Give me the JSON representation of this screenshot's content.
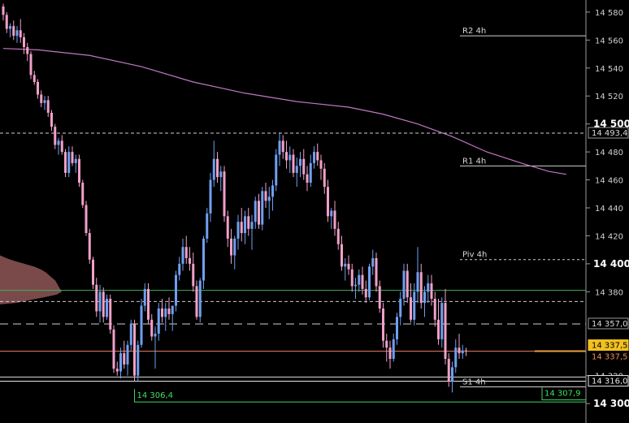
{
  "chart_data": {
    "type": "candlestick",
    "ylim": [
      14296,
      14584
    ],
    "y_ticks": [
      {
        "value": 14580,
        "label": "14 580",
        "major": false
      },
      {
        "value": 14560,
        "label": "14 560",
        "major": false
      },
      {
        "value": 14540,
        "label": "14 540",
        "major": false
      },
      {
        "value": 14520,
        "label": "14 520",
        "major": false
      },
      {
        "value": 14500,
        "label": "14 500",
        "major": true
      },
      {
        "value": 14480,
        "label": "14 480",
        "major": false
      },
      {
        "value": 14460,
        "label": "14 460",
        "major": false
      },
      {
        "value": 14440,
        "label": "14 440",
        "major": false
      },
      {
        "value": 14420,
        "label": "14 420",
        "major": false
      },
      {
        "value": 14400,
        "label": "14 400",
        "major": true
      },
      {
        "value": 14380,
        "label": "14 380",
        "major": false
      },
      {
        "value": 14320,
        "label": "14 320",
        "major": false
      },
      {
        "value": 14300,
        "label": "14 300",
        "major": true
      }
    ],
    "levels": [
      {
        "label": "R2 4h",
        "value": 14563
      },
      {
        "label": "R1 4h",
        "value": 14470
      },
      {
        "label": "Piv 4h",
        "value": 14403
      },
      {
        "label": "S1 4h",
        "value": 14312
      }
    ],
    "price_markers": [
      {
        "label": "14 493,4",
        "value": 14493.4,
        "kind": "dashed"
      },
      {
        "label": "14 357,0",
        "value": 14357.0,
        "kind": "longdash"
      },
      {
        "label": "14 337,5",
        "value": 14337.5,
        "kind": "last"
      },
      {
        "label": "14 337,5",
        "value": 14337.5,
        "kind": "bid"
      },
      {
        "label": "14 316,0",
        "value": 14316.0,
        "kind": "line"
      }
    ],
    "extra_lines": [
      {
        "value": 14381,
        "color": "#3fae5f",
        "style": "solid"
      },
      {
        "value": 14373,
        "color": "#cccccc",
        "style": "dashed"
      },
      {
        "value": 14319,
        "color": "#dddddd",
        "style": "solid"
      }
    ],
    "low_labels": [
      {
        "label": "14 306,4",
        "value": 14306.4,
        "bar": 38
      },
      {
        "label": "14 307,9",
        "value": 14307.9,
        "bar": 156
      }
    ],
    "moving_average": {
      "color": "#c078c0",
      "points": [
        [
          0,
          14554
        ],
        [
          10,
          14553
        ],
        [
          25,
          14549
        ],
        [
          40,
          14541
        ],
        [
          55,
          14530
        ],
        [
          70,
          14522
        ],
        [
          85,
          14516
        ],
        [
          100,
          14512
        ],
        [
          110,
          14507
        ],
        [
          120,
          14500
        ],
        [
          130,
          14491
        ],
        [
          140,
          14480
        ],
        [
          150,
          14472
        ],
        [
          158,
          14466
        ],
        [
          163,
          14464
        ]
      ]
    },
    "volume_profile_color": "#7a4a4a",
    "up_color": "#6fa0f0",
    "down_color": "#f0a0c8",
    "candles": [
      [
        14584,
        14586,
        14574,
        14578
      ],
      [
        14578,
        14580,
        14565,
        14568
      ],
      [
        14568,
        14572,
        14562,
        14570
      ],
      [
        14570,
        14574,
        14560,
        14563
      ],
      [
        14563,
        14570,
        14558,
        14567
      ],
      [
        14567,
        14575,
        14558,
        14562
      ],
      [
        14562,
        14565,
        14550,
        14555
      ],
      [
        14555,
        14558,
        14545,
        14550
      ],
      [
        14550,
        14552,
        14532,
        14535
      ],
      [
        14535,
        14538,
        14528,
        14530
      ],
      [
        14530,
        14532,
        14518,
        14521
      ],
      [
        14521,
        14524,
        14512,
        14515
      ],
      [
        14515,
        14520,
        14510,
        14517
      ],
      [
        14517,
        14520,
        14505,
        14508
      ],
      [
        14508,
        14510,
        14495,
        14498
      ],
      [
        14498,
        14500,
        14482,
        14485
      ],
      [
        14485,
        14490,
        14478,
        14488
      ],
      [
        14488,
        14492,
        14478,
        14480
      ],
      [
        14480,
        14482,
        14462,
        14465
      ],
      [
        14465,
        14484,
        14462,
        14480
      ],
      [
        14480,
        14484,
        14470,
        14472
      ],
      [
        14472,
        14478,
        14465,
        14475
      ],
      [
        14475,
        14478,
        14455,
        14458
      ],
      [
        14458,
        14460,
        14440,
        14442
      ],
      [
        14442,
        14445,
        14420,
        14422
      ],
      [
        14422,
        14425,
        14400,
        14403
      ],
      [
        14403,
        14405,
        14382,
        14385
      ],
      [
        14385,
        14390,
        14362,
        14366
      ],
      [
        14366,
        14385,
        14358,
        14380
      ],
      [
        14380,
        14383,
        14358,
        14362
      ],
      [
        14362,
        14378,
        14360,
        14375
      ],
      [
        14375,
        14378,
        14350,
        14353
      ],
      [
        14353,
        14356,
        14322,
        14325
      ],
      [
        14325,
        14330,
        14320,
        14323
      ],
      [
        14323,
        14340,
        14318,
        14336
      ],
      [
        14336,
        14345,
        14325,
        14328
      ],
      [
        14328,
        14345,
        14320,
        14342
      ],
      [
        14342,
        14360,
        14338,
        14357
      ],
      [
        14357,
        14360,
        14316,
        14320
      ],
      [
        14320,
        14345,
        14316,
        14342
      ],
      [
        14342,
        14375,
        14340,
        14370
      ],
      [
        14370,
        14386,
        14366,
        14382
      ],
      [
        14382,
        14386,
        14357,
        14360
      ],
      [
        14360,
        14364,
        14345,
        14348
      ],
      [
        14348,
        14355,
        14325,
        14350
      ],
      [
        14350,
        14372,
        14345,
        14368
      ],
      [
        14368,
        14375,
        14358,
        14362
      ],
      [
        14362,
        14372,
        14352,
        14368
      ],
      [
        14368,
        14376,
        14360,
        14364
      ],
      [
        14364,
        14370,
        14352,
        14370
      ],
      [
        14370,
        14395,
        14366,
        14392
      ],
      [
        14392,
        14405,
        14388,
        14400
      ],
      [
        14400,
        14418,
        14395,
        14412
      ],
      [
        14412,
        14420,
        14400,
        14404
      ],
      [
        14404,
        14412,
        14395,
        14400
      ],
      [
        14400,
        14408,
        14380,
        14384
      ],
      [
        14384,
        14388,
        14360,
        14362
      ],
      [
        14362,
        14390,
        14358,
        14388
      ],
      [
        14388,
        14420,
        14382,
        14418
      ],
      [
        14418,
        14440,
        14415,
        14436
      ],
      [
        14436,
        14465,
        14430,
        14460
      ],
      [
        14460,
        14488,
        14455,
        14475
      ],
      [
        14475,
        14480,
        14458,
        14462
      ],
      [
        14462,
        14470,
        14452,
        14466
      ],
      [
        14466,
        14470,
        14430,
        14434
      ],
      [
        14434,
        14438,
        14412,
        14418
      ],
      [
        14418,
        14425,
        14400,
        14406
      ],
      [
        14406,
        14420,
        14396,
        14418
      ],
      [
        14418,
        14435,
        14410,
        14430
      ],
      [
        14430,
        14440,
        14416,
        14422
      ],
      [
        14422,
        14438,
        14414,
        14434
      ],
      [
        14434,
        14440,
        14420,
        14425
      ],
      [
        14425,
        14435,
        14410,
        14430
      ],
      [
        14430,
        14448,
        14425,
        14445
      ],
      [
        14445,
        14450,
        14425,
        14428
      ],
      [
        14428,
        14455,
        14424,
        14452
      ],
      [
        14452,
        14458,
        14440,
        14445
      ],
      [
        14445,
        14455,
        14432,
        14448
      ],
      [
        14448,
        14460,
        14438,
        14456
      ],
      [
        14456,
        14482,
        14452,
        14478
      ],
      [
        14478,
        14494,
        14470,
        14488
      ],
      [
        14488,
        14492,
        14475,
        14480
      ],
      [
        14480,
        14488,
        14468,
        14474
      ],
      [
        14474,
        14484,
        14465,
        14478
      ],
      [
        14478,
        14482,
        14462,
        14465
      ],
      [
        14465,
        14476,
        14455,
        14470
      ],
      [
        14470,
        14480,
        14462,
        14475
      ],
      [
        14475,
        14482,
        14460,
        14464
      ],
      [
        14464,
        14470,
        14452,
        14458
      ],
      [
        14458,
        14478,
        14455,
        14472
      ],
      [
        14472,
        14484,
        14468,
        14480
      ],
      [
        14480,
        14486,
        14470,
        14474
      ],
      [
        14474,
        14478,
        14460,
        14468
      ],
      [
        14468,
        14472,
        14450,
        14455
      ],
      [
        14455,
        14460,
        14430,
        14434
      ],
      [
        14434,
        14440,
        14425,
        14438
      ],
      [
        14438,
        14445,
        14420,
        14425
      ],
      [
        14425,
        14430,
        14410,
        14414
      ],
      [
        14414,
        14420,
        14395,
        14398
      ],
      [
        14398,
        14404,
        14388,
        14400
      ],
      [
        14400,
        14406,
        14392,
        14396
      ],
      [
        14396,
        14400,
        14380,
        14384
      ],
      [
        14384,
        14390,
        14375,
        14385
      ],
      [
        14385,
        14396,
        14380,
        14392
      ],
      [
        14392,
        14398,
        14378,
        14382
      ],
      [
        14382,
        14388,
        14372,
        14376
      ],
      [
        14376,
        14400,
        14374,
        14398
      ],
      [
        14398,
        14410,
        14392,
        14404
      ],
      [
        14404,
        14408,
        14380,
        14384
      ],
      [
        14384,
        14388,
        14365,
        14368
      ],
      [
        14368,
        14372,
        14340,
        14345
      ],
      [
        14345,
        14350,
        14330,
        14340
      ],
      [
        14340,
        14345,
        14325,
        14332
      ],
      [
        14332,
        14350,
        14330,
        14346
      ],
      [
        14346,
        14365,
        14342,
        14362
      ],
      [
        14362,
        14380,
        14356,
        14375
      ],
      [
        14375,
        14400,
        14370,
        14395
      ],
      [
        14395,
        14400,
        14372,
        14376
      ],
      [
        14376,
        14386,
        14358,
        14360
      ],
      [
        14360,
        14386,
        14356,
        14380
      ],
      [
        14380,
        14412,
        14372,
        14394
      ],
      [
        14394,
        14400,
        14368,
        14372
      ],
      [
        14372,
        14384,
        14362,
        14380
      ],
      [
        14380,
        14392,
        14372,
        14386
      ],
      [
        14386,
        14392,
        14370,
        14375
      ],
      [
        14375,
        14380,
        14355,
        14360
      ],
      [
        14360,
        14375,
        14342,
        14346
      ],
      [
        14346,
        14376,
        14340,
        14372
      ],
      [
        14372,
        14382,
        14328,
        14332
      ],
      [
        14332,
        14336,
        14312,
        14316
      ],
      [
        14316,
        14330,
        14308,
        14326
      ],
      [
        14326,
        14346,
        14322,
        14340
      ],
      [
        14340,
        14350,
        14332,
        14336
      ],
      [
        14336,
        14342,
        14332,
        14338
      ],
      [
        14338,
        14340,
        14334,
        14337.5
      ]
    ]
  }
}
